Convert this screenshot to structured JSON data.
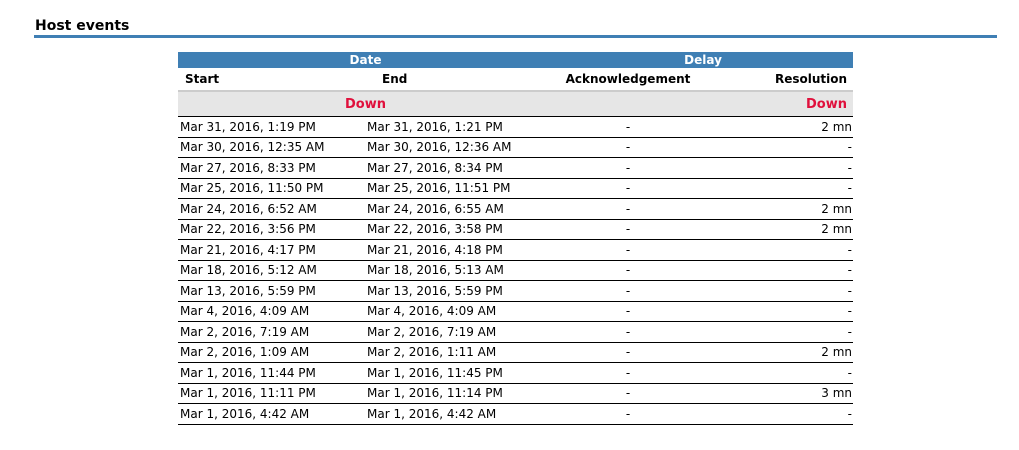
{
  "title": "Host events",
  "table": {
    "group_headers": {
      "date": "Date",
      "delay": "Delay"
    },
    "columns": {
      "start": "Start",
      "end": "End",
      "ack": "Acknowledgement",
      "resolution": "Resolution"
    },
    "section": {
      "left": "Down",
      "right": "Down"
    },
    "rows": [
      [
        "Mar 31, 2016, 1:19 PM",
        "Mar 31, 2016, 1:21 PM",
        "-",
        "2 mn"
      ],
      [
        "Mar 30, 2016, 12:35 AM",
        "Mar 30, 2016, 12:36 AM",
        "-",
        "-"
      ],
      [
        "Mar 27, 2016, 8:33 PM",
        "Mar 27, 2016, 8:34 PM",
        "-",
        "-"
      ],
      [
        "Mar 25, 2016, 11:50 PM",
        "Mar 25, 2016, 11:51 PM",
        "-",
        "-"
      ],
      [
        "Mar 24, 2016, 6:52 AM",
        "Mar 24, 2016, 6:55 AM",
        "-",
        "2 mn"
      ],
      [
        "Mar 22, 2016, 3:56 PM",
        "Mar 22, 2016, 3:58 PM",
        "-",
        "2 mn"
      ],
      [
        "Mar 21, 2016, 4:17 PM",
        "Mar 21, 2016, 4:18 PM",
        "-",
        "-"
      ],
      [
        "Mar 18, 2016, 5:12 AM",
        "Mar 18, 2016, 5:13 AM",
        "-",
        "-"
      ],
      [
        "Mar 13, 2016, 5:59 PM",
        "Mar 13, 2016, 5:59 PM",
        "-",
        "-"
      ],
      [
        "Mar 4, 2016, 4:09 AM",
        "Mar 4, 2016, 4:09 AM",
        "-",
        "-"
      ],
      [
        "Mar 2, 2016, 7:19 AM",
        "Mar 2, 2016, 7:19 AM",
        "-",
        "-"
      ],
      [
        "Mar 2, 2016, 1:09 AM",
        "Mar 2, 2016, 1:11 AM",
        "-",
        "2 mn"
      ],
      [
        "Mar 1, 2016, 11:44 PM",
        "Mar 1, 2016, 11:45 PM",
        "-",
        "-"
      ],
      [
        "Mar 1, 2016, 11:11 PM",
        "Mar 1, 2016, 11:14 PM",
        "-",
        "3 mn"
      ],
      [
        "Mar 1, 2016, 4:42 AM",
        "Mar 1, 2016, 4:42 AM",
        "-",
        "-"
      ]
    ]
  },
  "colors": {
    "accent": "#3f7fb4",
    "status_down": "#e0103c"
  }
}
